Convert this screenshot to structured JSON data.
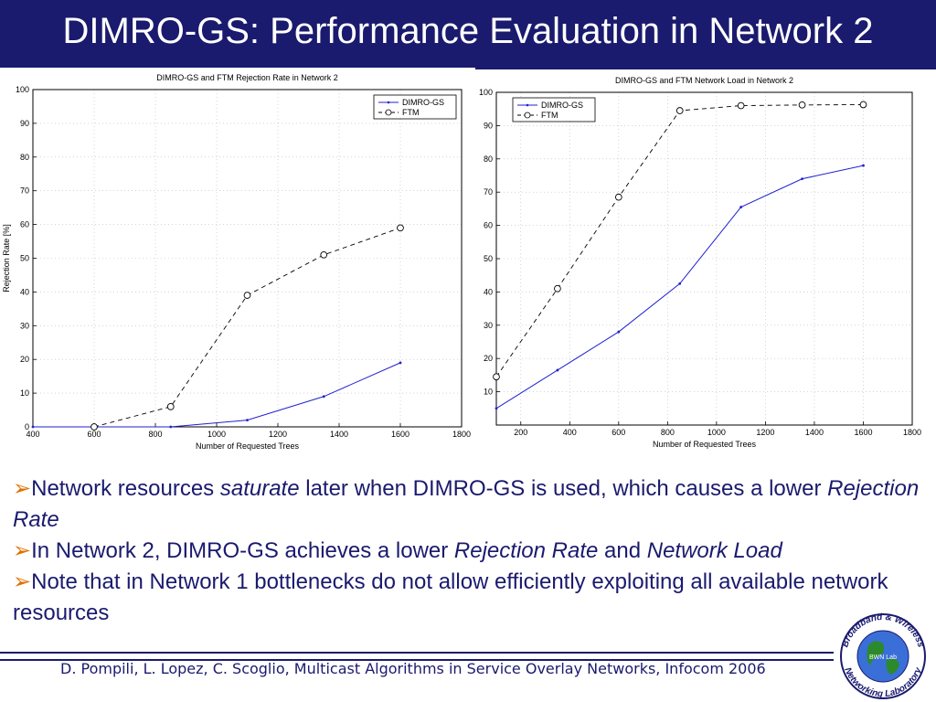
{
  "slide": {
    "title": "DIMRO-GS: Performance Evaluation in Network 2",
    "bullets": [
      {
        "parts": [
          {
            "text": "Network resources ",
            "italic": false
          },
          {
            "text": "saturate",
            "italic": true
          },
          {
            "text": " later when DIMRO-GS is used, which causes a lower ",
            "italic": false
          },
          {
            "text": "Rejection Rate",
            "italic": true
          }
        ]
      },
      {
        "parts": [
          {
            "text": "In Network 2, DIMRO-GS achieves a lower ",
            "italic": false
          },
          {
            "text": "Rejection Rate",
            "italic": true
          },
          {
            "text": " and ",
            "italic": false
          },
          {
            "text": "Network Load",
            "italic": true
          }
        ]
      },
      {
        "parts": [
          {
            "text": "Note that in Network 1 bottlenecks do not allow efficiently exploiting all available network resources",
            "italic": false
          }
        ]
      }
    ],
    "footer": "D. Pompili, L. Lopez, C. Scoglio, Multicast Algorithms in Service Overlay Networks, Infocom 2006",
    "logo": {
      "top_text": "Broadband & Wireless",
      "bottom_text": "Networking Laboratory",
      "center_text": "BWN Lab"
    },
    "colors": {
      "title_bg": "#1a1a6e",
      "text": "#1a1a6e",
      "arrow": "#e07000",
      "series_blue": "#2020d0",
      "series_black": "#000000"
    }
  },
  "chart_data": [
    {
      "type": "line",
      "title": "DIMRO-GS and FTM Rejection Rate in Network 2",
      "xlabel": "Number of Requested Trees",
      "ylabel": "Rejection Rate [%]",
      "xlim": [
        400,
        1800
      ],
      "ylim": [
        0,
        100
      ],
      "xticks": [
        400,
        600,
        800,
        1000,
        1200,
        1400,
        1600,
        1800
      ],
      "yticks": [
        0,
        10,
        20,
        30,
        40,
        50,
        60,
        70,
        80,
        90,
        100
      ],
      "grid": true,
      "legend": "top-right",
      "series": [
        {
          "name": "DIMRO-GS",
          "style": "solid",
          "marker": "dot",
          "color": "#2020d0",
          "x": [
            400,
            600,
            850,
            1100,
            1350,
            1600
          ],
          "y": [
            0,
            0,
            0,
            2,
            9,
            19
          ]
        },
        {
          "name": "FTM",
          "style": "dashed",
          "marker": "circle",
          "color": "#000000",
          "x": [
            600,
            850,
            1100,
            1350,
            1600
          ],
          "y": [
            0,
            6,
            39,
            51,
            59
          ]
        }
      ]
    },
    {
      "type": "line",
      "title": "DIMRO-GS and FTM Network Load in Network 2",
      "xlabel": "Number of Requested Trees",
      "ylabel": "",
      "xlim": [
        100,
        1800
      ],
      "ylim": [
        0,
        100
      ],
      "xticks": [
        200,
        400,
        600,
        800,
        1000,
        1200,
        1400,
        1600,
        1800
      ],
      "yticks": [
        10,
        20,
        30,
        40,
        50,
        60,
        70,
        80,
        90,
        100
      ],
      "grid": true,
      "legend": "top-left",
      "series": [
        {
          "name": "DIMRO-GS",
          "style": "solid",
          "marker": "dot",
          "color": "#2020d0",
          "x": [
            100,
            350,
            600,
            850,
            1100,
            1350,
            1600
          ],
          "y": [
            5,
            16.5,
            28,
            42.5,
            65.5,
            74,
            78
          ]
        },
        {
          "name": "FTM",
          "style": "dashed",
          "marker": "circle",
          "color": "#000000",
          "x": [
            100,
            350,
            600,
            850,
            1100,
            1350,
            1600
          ],
          "y": [
            14.5,
            41,
            68.5,
            94.5,
            96,
            96.2,
            96.3
          ]
        }
      ]
    }
  ]
}
